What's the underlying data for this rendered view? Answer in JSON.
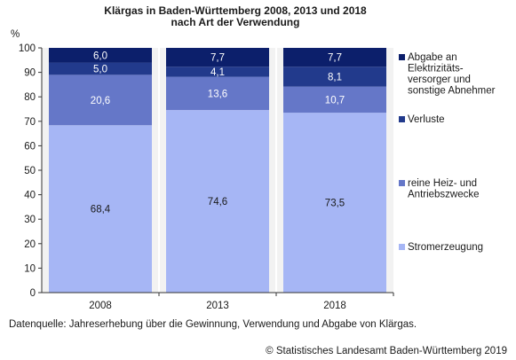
{
  "chart_data": {
    "type": "bar",
    "stacked": true,
    "title_lines": [
      "Klärgas in Baden-Württemberg 2008, 2013 und 2018",
      "nach Art der Verwendung"
    ],
    "ylabel": "%",
    "ylim": [
      0,
      100
    ],
    "yticks": [
      0,
      10,
      20,
      30,
      40,
      50,
      60,
      70,
      80,
      90,
      100
    ],
    "categories": [
      "2008",
      "2013",
      "2018"
    ],
    "grid": false,
    "legend_position": "right",
    "series": [
      {
        "name": "Stromerzeugung",
        "color": "#a6b6f5",
        "values": [
          68.4,
          74.6,
          73.5
        ],
        "labels": [
          "68,4",
          "74,6",
          "73,5"
        ],
        "label_color": "#1a1a1a"
      },
      {
        "name": "reine Heiz- und Antriebszwecke",
        "color": "#6577c8",
        "values": [
          20.6,
          13.6,
          10.7
        ],
        "labels": [
          "20,6",
          "13,6",
          "10,7"
        ],
        "label_color": "#ffffff"
      },
      {
        "name": "Verluste",
        "color": "#223a8c",
        "values": [
          5.0,
          4.1,
          8.1
        ],
        "labels": [
          "5,0",
          "4,1",
          "8,1"
        ],
        "label_color": "#ffffff"
      },
      {
        "name": "Abgabe an Elektrizitätsversorger und sonstige Abnehmer",
        "color": "#0c1f6b",
        "values": [
          6.0,
          7.7,
          7.7
        ],
        "labels": [
          "6,0",
          "7,7",
          "7,7"
        ],
        "label_color": "#ffffff"
      }
    ],
    "legend_lines": [
      [
        "Abgabe an",
        "Elektrizitäts-",
        "versorger und",
        "sonstige Abnehmer"
      ],
      [
        "Verluste"
      ],
      [
        "reine Heiz- und",
        "Antriebszwecke"
      ],
      [
        "Stromerzeugung"
      ]
    ]
  },
  "source_note": "Datenquelle: Jahreserhebung über die Gewinnung, Verwendung und Abgabe von Klärgas.",
  "copyright": "© Statistisches Landesamt Baden-Württemberg 2019"
}
